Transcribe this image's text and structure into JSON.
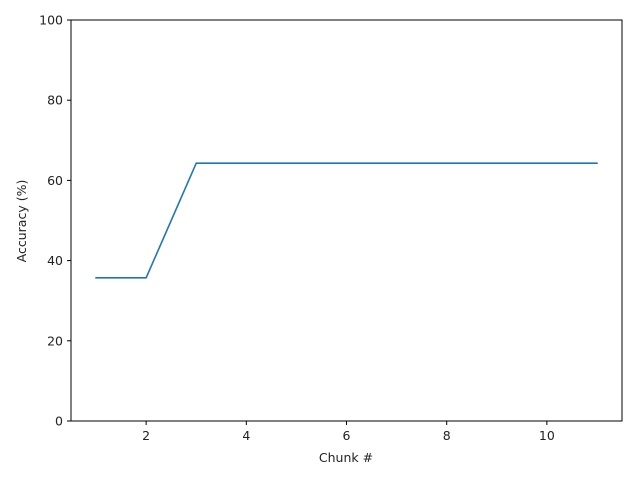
{
  "chart_data": {
    "type": "line",
    "title": "",
    "xlabel": "Chunk #",
    "ylabel": "Accuracy (%)",
    "xlim": [
      0.5,
      11.5
    ],
    "ylim": [
      0,
      100
    ],
    "x_ticks": [
      2,
      4,
      6,
      8,
      10
    ],
    "y_ticks": [
      0,
      20,
      40,
      60,
      80,
      100
    ],
    "grid": false,
    "series": [
      {
        "color": "#1f77b4",
        "x": [
          1,
          2,
          3,
          4,
          5,
          6,
          7,
          8,
          9,
          10,
          11
        ],
        "y": [
          35.7,
          35.7,
          64.3,
          64.3,
          64.3,
          64.3,
          64.3,
          64.3,
          64.3,
          64.3,
          64.3
        ]
      }
    ]
  }
}
